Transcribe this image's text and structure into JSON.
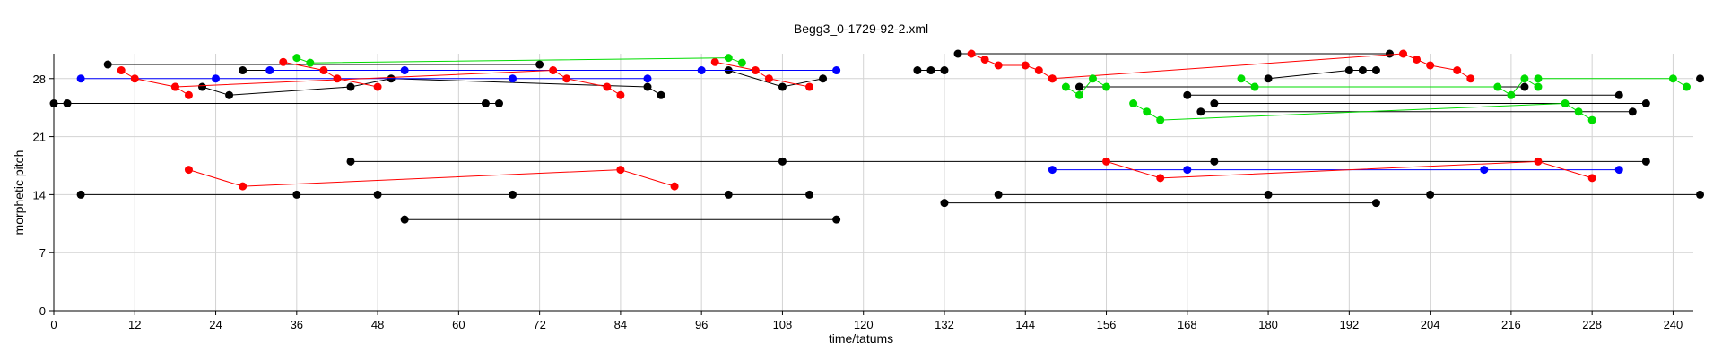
{
  "chart_data": {
    "type": "scatter",
    "title": "Begg3_0-1729-92-2.xml",
    "xlabel": "time/tatums",
    "ylabel": "morphetic pitch",
    "xlim": [
      0,
      243
    ],
    "ylim": [
      0,
      31
    ],
    "xticks": [
      0,
      12,
      24,
      36,
      48,
      60,
      72,
      84,
      96,
      108,
      120,
      132,
      144,
      156,
      168,
      180,
      192,
      204,
      216,
      228,
      240
    ],
    "yticks": [
      0,
      7,
      14,
      21,
      28
    ],
    "grid": true,
    "legend": "none",
    "series": [
      {
        "color": "#000000",
        "points": [
          [
            0,
            25
          ],
          [
            2,
            25
          ],
          [
            64,
            25
          ],
          [
            66,
            25
          ]
        ]
      },
      {
        "color": "#000000",
        "points": [
          [
            8,
            29.7
          ],
          [
            72,
            29.7
          ]
        ]
      },
      {
        "color": "#000000",
        "points": [
          [
            22,
            27
          ],
          [
            26,
            26
          ],
          [
            44,
            27
          ],
          [
            50,
            28
          ],
          [
            88,
            27
          ],
          [
            90,
            26
          ]
        ]
      },
      {
        "color": "#000000",
        "points": [
          [
            28,
            29
          ],
          [
            100,
            29
          ],
          [
            108,
            27
          ],
          [
            114,
            28
          ]
        ]
      },
      {
        "color": "#000000",
        "points": [
          [
            4,
            14
          ],
          [
            36,
            14
          ],
          [
            48,
            14
          ],
          [
            68,
            14
          ],
          [
            100,
            14
          ],
          [
            112,
            14
          ]
        ]
      },
      {
        "color": "#000000",
        "points": [
          [
            44,
            18
          ],
          [
            108,
            18
          ],
          [
            172,
            18
          ],
          [
            236,
            18
          ]
        ]
      },
      {
        "color": "#000000",
        "points": [
          [
            52,
            11
          ],
          [
            116,
            11
          ]
        ]
      },
      {
        "color": "#000000",
        "points": [
          [
            128,
            29
          ],
          [
            130,
            29
          ],
          [
            132,
            29
          ]
        ]
      },
      {
        "color": "#000000",
        "points": [
          [
            134,
            31
          ],
          [
            198,
            31
          ]
        ]
      },
      {
        "color": "#000000",
        "points": [
          [
            132,
            13
          ],
          [
            196,
            13
          ]
        ]
      },
      {
        "color": "#000000",
        "points": [
          [
            140,
            14
          ],
          [
            180,
            14
          ],
          [
            204,
            14
          ],
          [
            244,
            14
          ]
        ]
      },
      {
        "color": "#000000",
        "points": [
          [
            180,
            28
          ],
          [
            192,
            29
          ],
          [
            194,
            29
          ],
          [
            196,
            29
          ]
        ]
      },
      {
        "color": "#000000",
        "points": [
          [
            152,
            27
          ],
          [
            218,
            27
          ]
        ]
      },
      {
        "color": "#000000",
        "points": [
          [
            168,
            26
          ],
          [
            232,
            26
          ]
        ]
      },
      {
        "color": "#000000",
        "points": [
          [
            170,
            24
          ],
          [
            234,
            24
          ]
        ]
      },
      {
        "color": "#000000",
        "points": [
          [
            172,
            25
          ],
          [
            236,
            25
          ]
        ]
      },
      {
        "color": "#000000",
        "points": [
          [
            244,
            28
          ]
        ]
      },
      {
        "color": "#0000ff",
        "points": [
          [
            4,
            28
          ],
          [
            24,
            28
          ],
          [
            68,
            28
          ],
          [
            88,
            28
          ]
        ]
      },
      {
        "color": "#0000ff",
        "points": [
          [
            32,
            29
          ],
          [
            52,
            29
          ],
          [
            96,
            29
          ],
          [
            116,
            29
          ]
        ]
      },
      {
        "color": "#0000ff",
        "points": [
          [
            148,
            17
          ],
          [
            168,
            17
          ],
          [
            212,
            17
          ],
          [
            232,
            17
          ]
        ]
      },
      {
        "color": "#ff0000",
        "points": [
          [
            10,
            29
          ],
          [
            12,
            28
          ],
          [
            18,
            27
          ],
          [
            20,
            26
          ]
        ]
      },
      {
        "color": "#ff0000",
        "points": [
          [
            18,
            27
          ],
          [
            74,
            29
          ],
          [
            76,
            28
          ],
          [
            82,
            27
          ],
          [
            84,
            26
          ]
        ]
      },
      {
        "color": "#ff0000",
        "points": [
          [
            34,
            30
          ],
          [
            40,
            29
          ],
          [
            42,
            28
          ],
          [
            48,
            27
          ]
        ]
      },
      {
        "color": "#ff0000",
        "points": [
          [
            98,
            30
          ],
          [
            104,
            29
          ],
          [
            106,
            28
          ],
          [
            112,
            27
          ]
        ]
      },
      {
        "color": "#ff0000",
        "points": [
          [
            20,
            17
          ],
          [
            28,
            15
          ],
          [
            84,
            17
          ],
          [
            92,
            15
          ]
        ]
      },
      {
        "color": "#ff0000",
        "points": [
          [
            136,
            31
          ],
          [
            138,
            30.3
          ],
          [
            140,
            29.6
          ],
          [
            144,
            29.6
          ],
          [
            146,
            29
          ],
          [
            148,
            28
          ]
        ]
      },
      {
        "color": "#ff0000",
        "points": [
          [
            148,
            28
          ],
          [
            200,
            31
          ],
          [
            202,
            30.3
          ],
          [
            204,
            29.6
          ],
          [
            208,
            29
          ],
          [
            210,
            28
          ]
        ]
      },
      {
        "color": "#ff0000",
        "points": [
          [
            156,
            18
          ],
          [
            164,
            16
          ],
          [
            220,
            18
          ],
          [
            228,
            16
          ]
        ]
      },
      {
        "color": "#00dd00",
        "points": [
          [
            36,
            30.5
          ],
          [
            38,
            29.9
          ],
          [
            100,
            30.5
          ],
          [
            102,
            29.9
          ]
        ]
      },
      {
        "color": "#00dd00",
        "points": [
          [
            150,
            27
          ],
          [
            152,
            26
          ],
          [
            154,
            28
          ],
          [
            156,
            27
          ]
        ]
      },
      {
        "color": "#00dd00",
        "points": [
          [
            176,
            28
          ],
          [
            178,
            27
          ],
          [
            214,
            27
          ],
          [
            216,
            26
          ],
          [
            218,
            28
          ],
          [
            220,
            27
          ]
        ]
      },
      {
        "color": "#00dd00",
        "points": [
          [
            160,
            25
          ],
          [
            162,
            24
          ],
          [
            164,
            23
          ],
          [
            224,
            25
          ],
          [
            226,
            24
          ],
          [
            228,
            23
          ]
        ]
      },
      {
        "color": "#00dd00",
        "points": [
          [
            220,
            28
          ],
          [
            240,
            28
          ],
          [
            242,
            27
          ]
        ]
      }
    ]
  }
}
